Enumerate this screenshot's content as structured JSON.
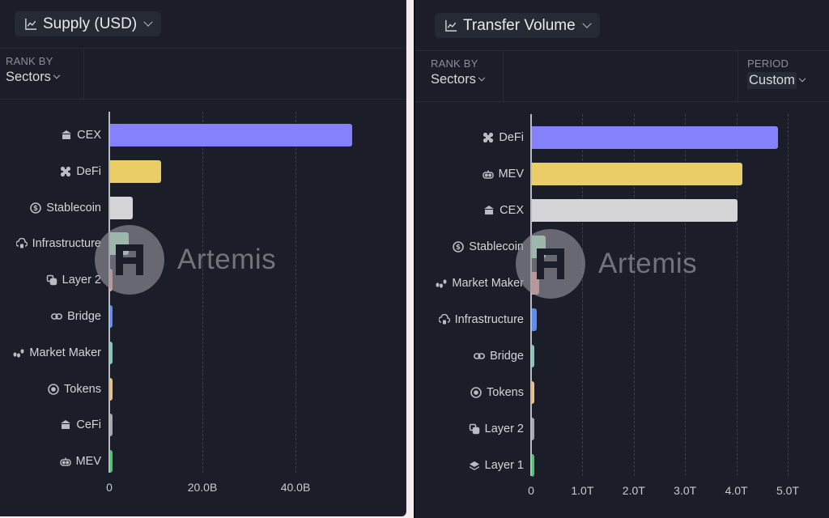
{
  "left_panel": {
    "metric_selector": {
      "label": "Supply (USD)",
      "icon": "line-chart-icon"
    },
    "rank_by": {
      "label": "RANK BY",
      "value": "Sectors"
    },
    "watermark": "Artemis"
  },
  "right_panel": {
    "metric_selector": {
      "label": "Transfer Volume",
      "icon": "line-chart-icon"
    },
    "rank_by": {
      "label": "RANK BY",
      "value": "Sectors"
    },
    "period": {
      "label": "PERIOD",
      "value": "Custom"
    },
    "watermark": "Artemis"
  },
  "colors": {
    "panel_bg": "#1b1e28",
    "bar_1": "#8481fb",
    "bar_2": "#ebcd68",
    "bar_3": "#d5d5d7",
    "bar_4": "#a9edbf",
    "bar_5": "#f1958c",
    "bar_6": "#5b8ef0",
    "bar_7": "#7dcbb7",
    "bar_8": "#f3c07a",
    "bar_9": "#a6a8b0",
    "bar_10": "#45c96b"
  },
  "chart_data": [
    {
      "type": "bar",
      "orientation": "horizontal",
      "title": "Supply (USD)",
      "xlabel": "",
      "ylabel": "Sectors",
      "xlim": [
        0,
        52
      ],
      "unit": "B",
      "ticks": [
        "0",
        "20.0B",
        "40.0B"
      ],
      "tick_values": [
        0,
        20,
        40
      ],
      "grid": true,
      "categories": [
        "CEX",
        "DeFi",
        "Stablecoin",
        "Infrastructure",
        "Layer 2",
        "Bridge",
        "Market Maker",
        "Tokens",
        "CeFi",
        "MEV"
      ],
      "icons": [
        "bank-icon",
        "defi-grid-icon",
        "dollar-coin-icon",
        "cloud-lock-icon",
        "layers-icon",
        "link-icon",
        "coins-icon",
        "target-icon",
        "bank-icon",
        "robot-icon"
      ],
      "values": [
        52.0,
        10.9,
        4.8,
        4.0,
        0.6,
        0.5,
        0.4,
        0.4,
        0.3,
        0.3
      ]
    },
    {
      "type": "bar",
      "orientation": "horizontal",
      "title": "Transfer Volume",
      "xlabel": "",
      "ylabel": "Sectors",
      "xlim": [
        0,
        5.3
      ],
      "unit": "T",
      "ticks": [
        "0",
        "1.0T",
        "2.0T",
        "3.0T",
        "4.0T",
        "5.0T"
      ],
      "tick_values": [
        0,
        1,
        2,
        3,
        4,
        5
      ],
      "grid": true,
      "categories": [
        "DeFi",
        "MEV",
        "CEX",
        "Stablecoin",
        "Market Maker",
        "Infrastructure",
        "Bridge",
        "Tokens",
        "Layer 2",
        "Layer 1"
      ],
      "icons": [
        "defi-grid-icon",
        "robot-icon",
        "bank-icon",
        "dollar-coin-icon",
        "coins-icon",
        "cloud-lock-icon",
        "link-icon",
        "target-icon",
        "layers-icon",
        "layer1-icon"
      ],
      "values": [
        4.8,
        4.1,
        4.0,
        0.27,
        0.14,
        0.09,
        0.05,
        0.05,
        0.04,
        0.04
      ]
    }
  ]
}
